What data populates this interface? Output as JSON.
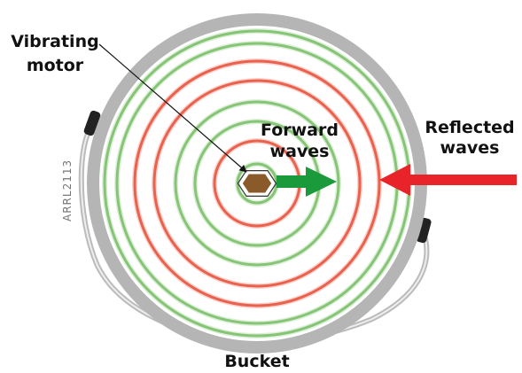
{
  "labels": {
    "motor": [
      "Vibrating",
      "motor"
    ],
    "forward": [
      "Forward",
      "waves"
    ],
    "reflected": [
      "Reflected",
      "waves"
    ],
    "bucket": "Bucket",
    "credit": "ARRL2113"
  }
}
